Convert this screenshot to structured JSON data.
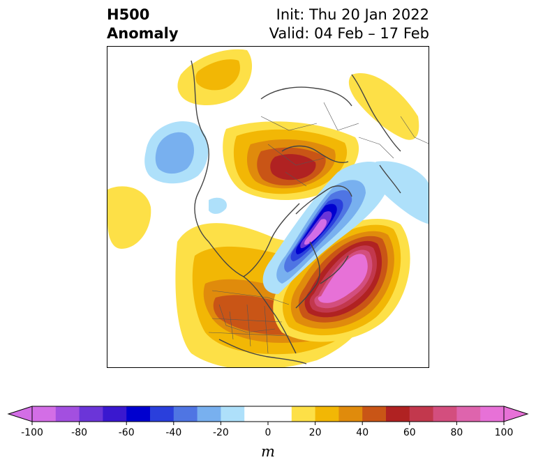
{
  "header": {
    "title_line1": "H500",
    "title_line2": "Anomaly",
    "init_text": "Init: Thu 20 Jan 2022",
    "valid_text": "Valid: 04 Feb – 17 Feb"
  },
  "colorbar": {
    "unit": "m",
    "min": -100,
    "max": 100,
    "bins": [
      {
        "from": -100,
        "to": -90,
        "color": "#d36ee6"
      },
      {
        "from": -90,
        "to": -80,
        "color": "#a34fe0"
      },
      {
        "from": -80,
        "to": -70,
        "color": "#6b35d8"
      },
      {
        "from": -70,
        "to": -60,
        "color": "#3a18cf"
      },
      {
        "from": -60,
        "to": -50,
        "color": "#0000cf"
      },
      {
        "from": -50,
        "to": -40,
        "color": "#2a3fdc"
      },
      {
        "from": -40,
        "to": -30,
        "color": "#4f75e3"
      },
      {
        "from": -30,
        "to": -20,
        "color": "#78b0ef"
      },
      {
        "from": -20,
        "to": -10,
        "color": "#aee0fa"
      },
      {
        "from": -10,
        "to": 10,
        "color": "#ffffff"
      },
      {
        "from": 10,
        "to": 20,
        "color": "#fde047"
      },
      {
        "from": 20,
        "to": 30,
        "color": "#f2b705"
      },
      {
        "from": 30,
        "to": 40,
        "color": "#e08b0c"
      },
      {
        "from": 40,
        "to": 50,
        "color": "#c95516"
      },
      {
        "from": 50,
        "to": 60,
        "color": "#b02222"
      },
      {
        "from": 60,
        "to": 70,
        "color": "#c2384d"
      },
      {
        "from": 70,
        "to": 80,
        "color": "#d34e7e"
      },
      {
        "from": 80,
        "to": 90,
        "color": "#de64ad"
      },
      {
        "from": 90,
        "to": 100,
        "color": "#e771d7"
      }
    ],
    "extend_low_color": "#d36ee6",
    "extend_high_color": "#e771d7",
    "ticks": [
      "-100",
      "-80",
      "-60",
      "-40",
      "-20",
      "0",
      "20",
      "40",
      "60",
      "80",
      "100"
    ]
  },
  "map": {
    "projection": "north-polar-stereographic",
    "coastline_color": "#444444",
    "border_color": "#555555"
  }
}
